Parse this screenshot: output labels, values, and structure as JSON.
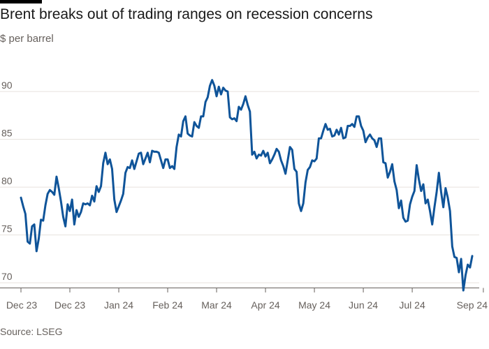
{
  "title": "Brent breaks out of trading ranges on recession concerns",
  "subtitle": "$ per barrel",
  "source": "Source: LSEG",
  "colors": {
    "line": "#0f5499",
    "grid": "#e6e2dd",
    "axis": "#66605c",
    "top_bar": "#000000"
  },
  "chart_data": {
    "type": "line",
    "title": "Brent breaks out of trading ranges on recession concerns",
    "ylabel": "$ per barrel",
    "xlabel": "",
    "ylim": [
      69.5,
      93
    ],
    "y_ticks": [
      70,
      75,
      80,
      85,
      90
    ],
    "x_tick_labels": [
      "Dec 23",
      "Dec 23",
      "Jan 24",
      "Feb 24",
      "Mar 24",
      "Apr 24",
      "May 24",
      "Jun 24",
      "Jul 24",
      "Sep 24"
    ],
    "x_tick_index": [
      0,
      22,
      44,
      66,
      88,
      110,
      132,
      154,
      176,
      208
    ],
    "grid": true,
    "legend": "none",
    "series": [
      {
        "values": [
          78.9,
          78.0,
          77.2,
          74.3,
          74.1,
          75.9,
          76.1,
          73.3,
          74.6,
          76.6,
          76.5,
          78.1,
          79.3,
          79.7,
          79.5,
          79.2,
          81.1,
          79.9,
          78.5,
          76.9,
          75.9,
          78.2,
          77.5,
          78.7,
          76.1,
          77.6,
          76.9,
          77.4,
          78.3,
          78.2,
          78.3,
          78.1,
          79.1,
          78.5,
          80.1,
          79.5,
          80.1,
          82.5,
          83.6,
          82.4,
          82.9,
          81.9,
          78.7,
          77.4,
          78.0,
          78.6,
          79.3,
          81.5,
          82.1,
          82.0,
          82.8,
          81.9,
          82.7,
          83.5,
          83.6,
          82.4,
          83.0,
          83.6,
          82.6,
          83.8,
          83.7,
          83.7,
          83.6,
          82.8,
          82.0,
          82.9,
          82.9,
          82.0,
          82.2,
          81.9,
          84.2,
          85.5,
          85.3,
          86.9,
          87.4,
          85.6,
          85.4,
          85.3,
          86.8,
          86.4,
          86.2,
          87.4,
          87.4,
          88.9,
          89.4,
          90.6,
          91.2,
          90.6,
          89.5,
          90.5,
          89.7,
          90.4,
          90.1,
          90.0,
          87.3,
          87.1,
          87.2,
          86.9,
          88.4,
          88.1,
          88.7,
          89.5,
          88.6,
          87.9,
          83.4,
          83.7,
          83.0,
          83.4,
          83.3,
          83.8,
          83.2,
          83.6,
          82.5,
          82.9,
          83.4,
          84.0,
          83.7,
          82.8,
          82.2,
          81.4,
          82.8,
          84.2,
          83.9,
          81.9,
          81.6,
          78.3,
          77.5,
          78.3,
          80.5,
          81.8,
          82.1,
          82.8,
          82.7,
          83.0,
          85.1,
          85.1,
          85.9,
          86.6,
          86.0,
          86.1,
          85.3,
          85.4,
          86.0,
          85.5,
          86.2,
          85.1,
          85.2,
          86.4,
          86.4,
          86.6,
          86.3,
          87.4,
          87.4,
          86.4,
          85.9,
          84.7,
          85.2,
          85.5,
          85.1,
          84.9,
          84.2,
          85.1,
          85.1,
          82.6,
          82.5,
          81.0,
          81.6,
          82.4,
          80.6,
          79.7,
          77.8,
          78.6,
          76.8,
          76.4,
          76.5,
          78.2,
          79.0,
          79.6,
          82.3,
          80.8,
          79.6,
          80.3,
          78.3,
          78.7,
          77.5,
          76.1,
          77.9,
          79.5,
          81.5,
          79.5,
          77.9,
          79.9,
          78.9,
          77.5,
          73.8,
          72.7,
          72.6,
          71.1,
          72.5,
          69.2,
          70.8,
          71.9,
          71.6,
          72.8
        ]
      }
    ]
  }
}
